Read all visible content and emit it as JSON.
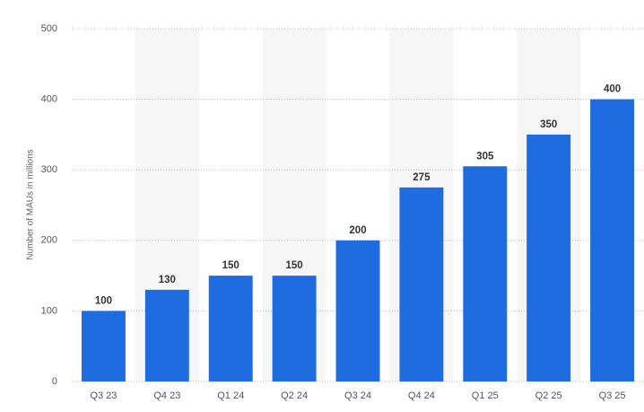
{
  "chart_data": {
    "type": "bar",
    "y_label": "Number of MAUs in millions",
    "categories": [
      "Q3 23",
      "Q4 23",
      "Q1 24",
      "Q2 24",
      "Q3 24",
      "Q4 24",
      "Q1 25",
      "Q2 25",
      "Q3 25"
    ],
    "values": [
      100,
      130,
      150,
      150,
      200,
      275,
      305,
      350,
      400
    ],
    "color": "#1f6be0",
    "ylim": [
      0,
      500
    ],
    "yticks": [
      0,
      100,
      200,
      300,
      400,
      500
    ],
    "grid": true
  }
}
